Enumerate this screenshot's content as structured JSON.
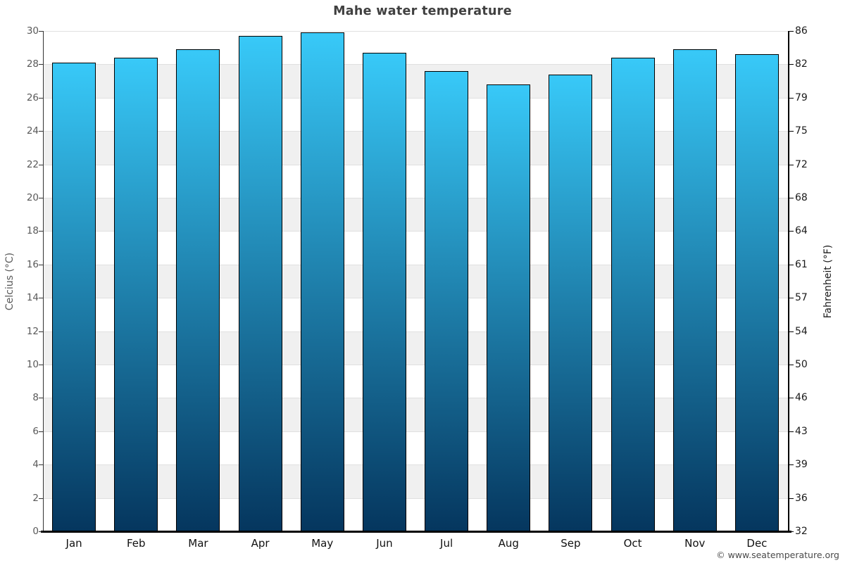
{
  "title": "Mahe water temperature",
  "axes": {
    "left": {
      "label": "Celcius (°C)",
      "ticks": [
        30,
        28,
        26,
        24,
        22,
        20,
        18,
        16,
        14,
        12,
        10,
        8,
        6,
        4,
        2,
        0
      ]
    },
    "right": {
      "label": "Fahrenheit (°F)",
      "ticks": [
        86,
        82,
        79,
        75,
        72,
        68,
        64,
        61,
        57,
        54,
        50,
        46,
        43,
        39,
        36,
        32
      ]
    }
  },
  "footer": {
    "copyright": "© www.seatemperature.org"
  },
  "colors": {
    "band_gray": "#f0f0f0",
    "band_white": "#ffffff",
    "grid_line": "#e0e0e0",
    "bar_top": "#38c9f8",
    "bar_bottom": "#05365e",
    "bar_border": "#000000",
    "left_axis_line": "#333333",
    "right_axis_line": "#000000",
    "bottom_axis_line": "#000000",
    "title_text": "#404040",
    "left_axis_text": "#595959",
    "right_axis_text": "#1a1a1a",
    "month_text": "#111111",
    "copyright_text": "#4a4a4a"
  },
  "chart_data": {
    "type": "bar",
    "title": "Mahe water temperature",
    "categories": [
      "Jan",
      "Feb",
      "Mar",
      "Apr",
      "May",
      "Jun",
      "Jul",
      "Aug",
      "Sep",
      "Oct",
      "Nov",
      "Dec"
    ],
    "values": [
      28.1,
      28.4,
      28.9,
      29.7,
      29.9,
      28.7,
      27.6,
      26.8,
      27.4,
      28.4,
      28.9,
      28.6
    ],
    "unit": "°C",
    "ylabel_left": "Celcius (°C)",
    "ylabel_right": "Fahrenheit (°F)",
    "ylim": [
      0,
      30
    ],
    "ytick_step": 2,
    "fahrenheit_ticks": [
      86,
      82,
      79,
      75,
      72,
      68,
      64,
      61,
      57,
      54,
      50,
      46,
      43,
      39,
      36,
      32
    ],
    "grid": "alternating-horizontal-bands",
    "legend": "none"
  }
}
